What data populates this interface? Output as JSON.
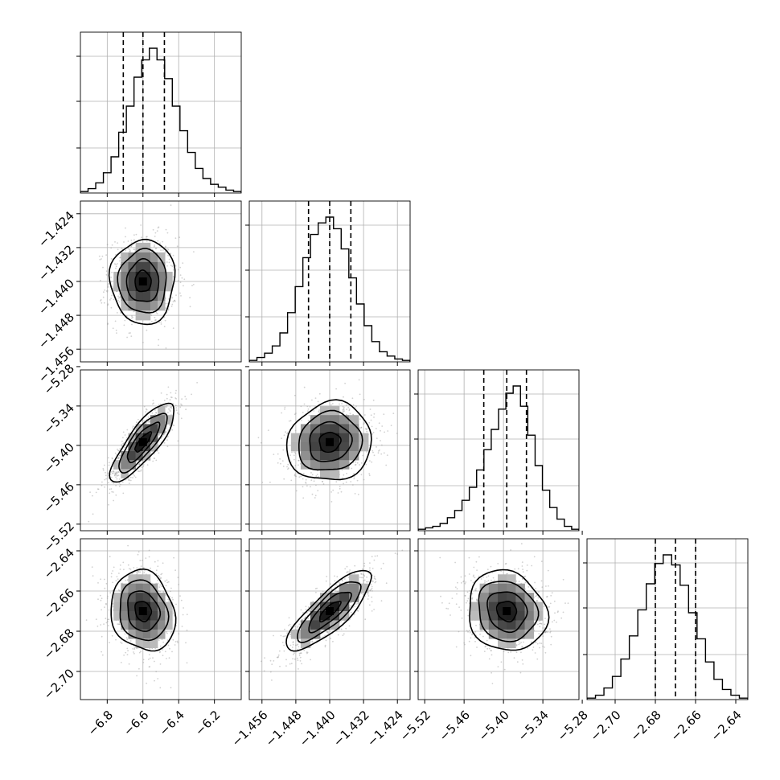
{
  "chart_data": {
    "type": "corner",
    "parameters": [
      {
        "limits": [
          -6.95,
          -6.05
        ],
        "ticks": [
          -6.8,
          -6.6,
          -6.4,
          -6.2
        ],
        "tick_labels": [
          "−6.8",
          "−6.6",
          "−6.4",
          "−6.2"
        ],
        "quantiles": [
          -6.71,
          -6.6,
          -6.48
        ],
        "hist": [
          1,
          3,
          7,
          14,
          25,
          42,
          60,
          80,
          92,
          100,
          92,
          79,
          60,
          43,
          28,
          17,
          10,
          6,
          4,
          2,
          1
        ]
      },
      {
        "limits": [
          -1.459,
          -1.421
        ],
        "ticks": [
          -1.456,
          -1.448,
          -1.44,
          -1.432,
          -1.424
        ],
        "tick_labels": [
          "−1.456",
          "−1.448",
          "−1.440",
          "−1.432",
          "−1.424"
        ],
        "quantiles": [
          -1.445,
          -1.44,
          -1.435
        ],
        "hist": [
          1,
          3,
          6,
          11,
          20,
          34,
          52,
          72,
          88,
          96,
          100,
          92,
          78,
          58,
          40,
          25,
          14,
          7,
          4,
          2,
          1
        ]
      },
      {
        "limits": [
          -5.53,
          -5.285
        ],
        "ticks": [
          -5.52,
          -5.46,
          -5.4,
          -5.34,
          -5.28
        ],
        "tick_labels": [
          "−5.52",
          "−5.46",
          "−5.40",
          "−5.34",
          "−5.28"
        ],
        "quantiles": [
          -5.43,
          -5.395,
          -5.365
        ],
        "hist": [
          1,
          2,
          3,
          5,
          9,
          14,
          21,
          30,
          42,
          56,
          70,
          84,
          95,
          100,
          86,
          66,
          45,
          28,
          16,
          8,
          3,
          1
        ]
      },
      {
        "limits": [
          -2.714,
          -2.634
        ],
        "ticks": [
          -2.7,
          -2.68,
          -2.66,
          -2.64
        ],
        "tick_labels": [
          "−2.70",
          "−2.68",
          "−2.66",
          "−2.64"
        ],
        "quantiles": [
          -2.68,
          -2.67,
          -2.66
        ],
        "hist": [
          1,
          3,
          8,
          16,
          28,
          44,
          62,
          80,
          94,
          100,
          93,
          79,
          60,
          42,
          26,
          14,
          7,
          3,
          1
        ]
      }
    ],
    "pairs": [
      {
        "row": 1,
        "col": 0,
        "center": [
          -6.6,
          -1.44
        ],
        "sigma": [
          0.09,
          0.005
        ],
        "rho": 0.0
      },
      {
        "row": 2,
        "col": 0,
        "center": [
          -6.6,
          -5.395
        ],
        "sigma": [
          0.09,
          0.03
        ],
        "rho": 0.82
      },
      {
        "row": 2,
        "col": 1,
        "center": [
          -1.44,
          -5.395
        ],
        "sigma": [
          0.005,
          0.03
        ],
        "rho": 0.08
      },
      {
        "row": 3,
        "col": 0,
        "center": [
          -6.6,
          -2.67
        ],
        "sigma": [
          0.09,
          0.01
        ],
        "rho": -0.15
      },
      {
        "row": 3,
        "col": 1,
        "center": [
          -1.44,
          -2.67
        ],
        "sigma": [
          0.005,
          0.01
        ],
        "rho": 0.82
      },
      {
        "row": 3,
        "col": 2,
        "center": [
          -5.395,
          -2.67
        ],
        "sigma": [
          0.03,
          0.01
        ],
        "rho": -0.12
      }
    ],
    "contour_levels": [
      0.5,
      1.0,
      1.5,
      2.0
    ],
    "grid": true
  }
}
